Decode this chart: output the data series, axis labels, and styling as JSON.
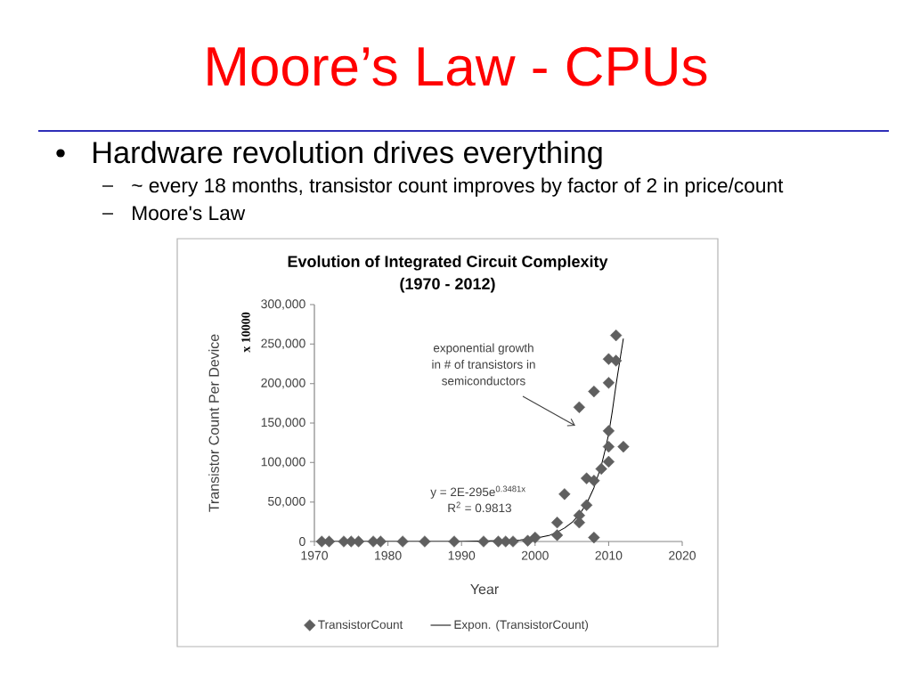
{
  "chart_data": {
    "type": "scatter",
    "title": "Moore’s Law - CPUs",
    "subtitle": "Evolution of Integrated Circuit Complexity (1970 - 2012)",
    "xlabel": "Year",
    "ylabel": "Transistor Count Per Device",
    "annotations": [
      "Hardware revolution drives everything",
      "~ every 18 months, transistor count improves by factor of 2 in price/count",
      "Moore's Law",
      "x 10000",
      "y = 2E-295e$^{0.3481x}$",
      "R$^{2}$ = 0.9813",
      "exponential growth in # of transistors in semiconductors"
    ],
    "x": [
      1971,
      1972,
      1974,
      1975,
      1976,
      1978,
      1979,
      1982,
      1985,
      1989,
      1993,
      1995,
      1996,
      1997,
      1999,
      2000,
      2003,
      2003,
      2004,
      2006,
      2006,
      2006,
      2007,
      2007,
      2008,
      2008,
      2008,
      2009,
      2010,
      2010,
      2010,
      2010,
      2010,
      2011,
      2011,
      2012
    ],
    "series": [
      {
        "name": "TransistorCount",
        "color": "#5f5f5f",
        "values": [
          0,
          0,
          0,
          0,
          0,
          0,
          0,
          0,
          0,
          0,
          0,
          0,
          0,
          0,
          1000,
          5000,
          24000,
          8000,
          60000,
          170000,
          33000,
          24000,
          46000,
          80000,
          77000,
          5000,
          190000,
          92000,
          101000,
          120000,
          140000,
          201000,
          231000,
          229000,
          261000,
          120000
        ]
      },
      {
        "name": "Expon. (TransistorCount)",
        "type": "line",
        "color": "#000000",
        "marker": "none",
        "line_style": "solid",
        "x": [
          1971,
          1980,
          1990,
          1995,
          1998,
          2000,
          2002,
          2003,
          2004,
          2005,
          2006,
          2007,
          2008,
          2009,
          2009.5,
          2010,
          2010.5,
          2011,
          2011.5,
          2012
        ],
        "values": [
          0,
          0,
          0,
          1000,
          2000,
          4000,
          8000,
          12000,
          17000,
          24000,
          34000,
          48000,
          68000,
          96000,
          115000,
          136000,
          165000,
          198000,
          228000,
          257000
        ]
      }
    ],
    "xlim": [
      1970,
      2020
    ],
    "xticks": [
      1970,
      1980,
      1990,
      2000,
      2010,
      2020
    ],
    "ylim": [
      0,
      300000
    ],
    "yticks": [
      0,
      {
        "value": 50000,
        "label": "50,000"
      },
      {
        "value": 100000,
        "label": "100,000"
      },
      {
        "value": 150000,
        "label": "150,000"
      },
      {
        "value": 200000,
        "label": "200,000"
      },
      {
        "value": 250000,
        "label": "250,000"
      },
      {
        "value": 300000,
        "label": "300,000"
      }
    ],
    "legend": "bottom",
    "marker": "diamond"
  }
}
